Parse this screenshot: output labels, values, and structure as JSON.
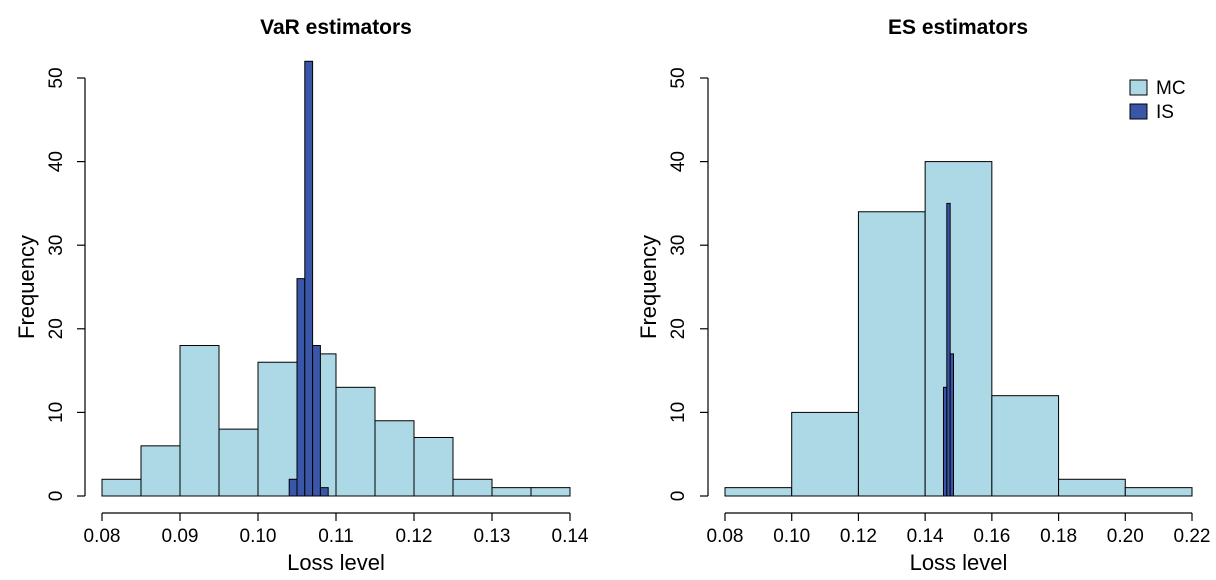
{
  "chart_data": [
    {
      "type": "bar",
      "title": "VaR estimators",
      "xlabel": "Loss level",
      "ylabel": "Frequency",
      "xlim": [
        0.08,
        0.14
      ],
      "ylim": [
        0,
        50
      ],
      "xticks": [
        "0.08",
        "0.09",
        "0.10",
        "0.11",
        "0.12",
        "0.13",
        "0.14"
      ],
      "yticks": [
        "0",
        "10",
        "20",
        "30",
        "40",
        "50"
      ],
      "colors": {
        "MC": "#add8e6",
        "IS": "#3a56a8"
      },
      "series": [
        {
          "name": "MC",
          "bins": [
            {
              "x0": 0.08,
              "x1": 0.085,
              "count": 2
            },
            {
              "x0": 0.085,
              "x1": 0.09,
              "count": 6
            },
            {
              "x0": 0.09,
              "x1": 0.095,
              "count": 18
            },
            {
              "x0": 0.095,
              "x1": 0.1,
              "count": 8
            },
            {
              "x0": 0.1,
              "x1": 0.105,
              "count": 16
            },
            {
              "x0": 0.105,
              "x1": 0.11,
              "count": 17
            },
            {
              "x0": 0.11,
              "x1": 0.115,
              "count": 13
            },
            {
              "x0": 0.115,
              "x1": 0.12,
              "count": 9
            },
            {
              "x0": 0.12,
              "x1": 0.125,
              "count": 7
            },
            {
              "x0": 0.125,
              "x1": 0.13,
              "count": 2
            },
            {
              "x0": 0.13,
              "x1": 0.135,
              "count": 1
            },
            {
              "x0": 0.135,
              "x1": 0.14,
              "count": 1
            }
          ]
        },
        {
          "name": "IS",
          "bins": [
            {
              "x0": 0.104,
              "x1": 0.105,
              "count": 2
            },
            {
              "x0": 0.105,
              "x1": 0.106,
              "count": 26
            },
            {
              "x0": 0.106,
              "x1": 0.107,
              "count": 52
            },
            {
              "x0": 0.107,
              "x1": 0.108,
              "count": 18
            },
            {
              "x0": 0.108,
              "x1": 0.109,
              "count": 1
            }
          ]
        }
      ]
    },
    {
      "type": "bar",
      "title": "ES estimators",
      "xlabel": "Loss level",
      "ylabel": "Frequency",
      "xlim": [
        0.08,
        0.22
      ],
      "ylim": [
        0,
        50
      ],
      "xticks": [
        "0.08",
        "0.10",
        "0.12",
        "0.14",
        "0.16",
        "0.18",
        "0.20",
        "0.22"
      ],
      "yticks": [
        "0",
        "10",
        "20",
        "30",
        "40",
        "50"
      ],
      "legend": {
        "position": "top-right",
        "entries": [
          "MC",
          "IS"
        ]
      },
      "colors": {
        "MC": "#add8e6",
        "IS": "#3a56a8"
      },
      "series": [
        {
          "name": "MC",
          "bins": [
            {
              "x0": 0.08,
              "x1": 0.1,
              "count": 1
            },
            {
              "x0": 0.1,
              "x1": 0.12,
              "count": 10
            },
            {
              "x0": 0.12,
              "x1": 0.14,
              "count": 34
            },
            {
              "x0": 0.14,
              "x1": 0.16,
              "count": 40
            },
            {
              "x0": 0.16,
              "x1": 0.18,
              "count": 12
            },
            {
              "x0": 0.18,
              "x1": 0.2,
              "count": 2
            },
            {
              "x0": 0.2,
              "x1": 0.22,
              "count": 1
            }
          ]
        },
        {
          "name": "IS",
          "bins": [
            {
              "x0": 0.1455,
              "x1": 0.1465,
              "count": 13
            },
            {
              "x0": 0.1465,
              "x1": 0.1475,
              "count": 35
            },
            {
              "x0": 0.1475,
              "x1": 0.1485,
              "count": 17
            }
          ]
        }
      ]
    }
  ]
}
